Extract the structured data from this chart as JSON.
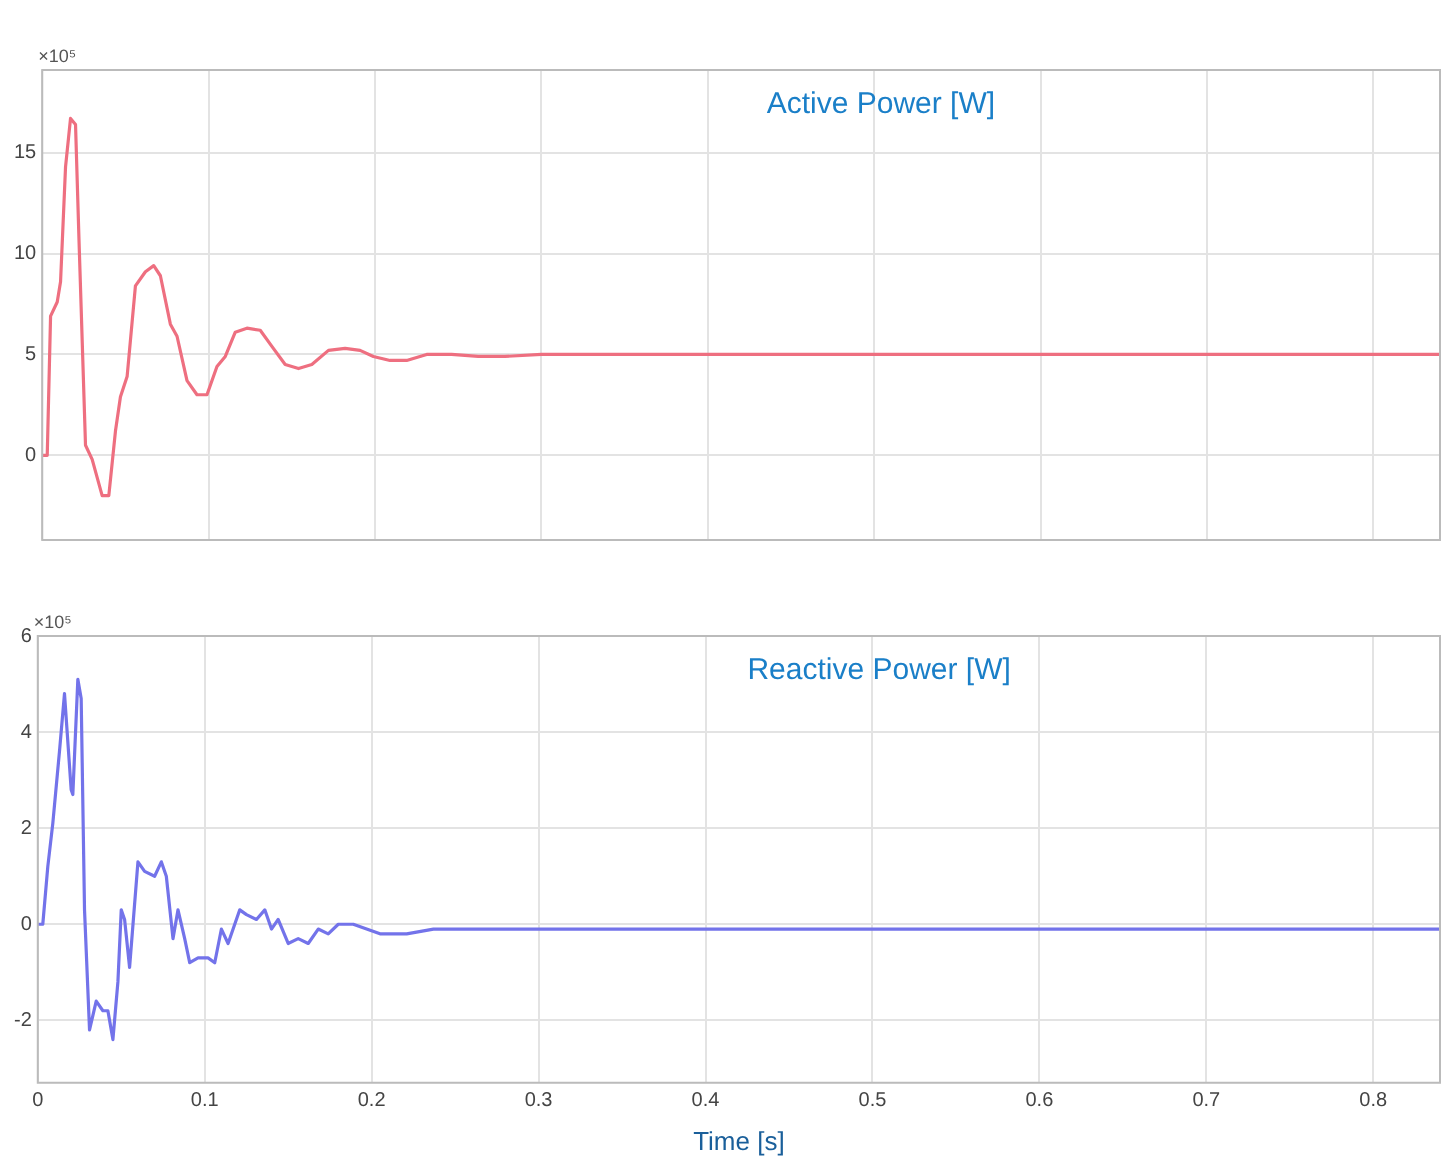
{
  "chart_data": [
    {
      "type": "line",
      "title": "Active Power [W]",
      "annotations": [
        "×10⁵"
      ],
      "x": [
        0,
        0.003,
        0.005,
        0.009,
        0.011,
        0.014,
        0.017,
        0.02,
        0.022,
        0.026,
        0.03,
        0.036,
        0.04,
        0.044,
        0.047,
        0.051,
        0.056,
        0.062,
        0.067,
        0.071,
        0.077,
        0.081,
        0.087,
        0.093,
        0.099,
        0.105,
        0.11,
        0.116,
        0.123,
        0.131,
        0.138,
        0.146,
        0.154,
        0.162,
        0.172,
        0.182,
        0.191,
        0.199,
        0.209,
        0.219,
        0.231,
        0.246,
        0.262,
        0.278,
        0.3,
        0.4,
        0.5,
        0.6,
        0.7,
        0.84
      ],
      "series": [
        {
          "color": "#ee6f80",
          "values": [
            0,
            0,
            6.9,
            7.6,
            8.6,
            14.3,
            16.7,
            16.4,
            10.9,
            0.5,
            -0.2,
            -2.0,
            -2.0,
            1.2,
            2.9,
            3.9,
            8.4,
            9.1,
            9.4,
            8.9,
            6.5,
            5.9,
            3.7,
            3.0,
            3.0,
            4.4,
            4.9,
            6.1,
            6.3,
            6.2,
            5.4,
            4.5,
            4.3,
            4.5,
            5.2,
            5.3,
            5.2,
            4.9,
            4.7,
            4.7,
            5.0,
            5.0,
            4.9,
            4.9,
            5.0,
            5.0,
            5.0,
            5.0,
            5.0,
            5.0
          ]
        }
      ],
      "xlim": [
        0,
        0.84
      ],
      "xticks": [
        0,
        0.1,
        0.2,
        0.3,
        0.4,
        0.5,
        0.6,
        0.7,
        0.8
      ],
      "ylim": [
        -4.2,
        19.1
      ],
      "yticks": [
        0,
        5,
        10,
        15
      ],
      "grid": true,
      "tick_labels": "y"
    },
    {
      "type": "line",
      "title": "Reactive Power [W]",
      "xlabel": "Time [s]",
      "annotations": [
        "×10⁵"
      ],
      "x": [
        0,
        0.003,
        0.006,
        0.009,
        0.013,
        0.016,
        0.02,
        0.021,
        0.024,
        0.026,
        0.028,
        0.031,
        0.035,
        0.039,
        0.042,
        0.045,
        0.048,
        0.05,
        0.052,
        0.055,
        0.06,
        0.064,
        0.07,
        0.074,
        0.077,
        0.081,
        0.084,
        0.088,
        0.091,
        0.096,
        0.102,
        0.106,
        0.11,
        0.114,
        0.121,
        0.125,
        0.131,
        0.136,
        0.14,
        0.144,
        0.15,
        0.156,
        0.162,
        0.168,
        0.174,
        0.18,
        0.189,
        0.197,
        0.205,
        0.221,
        0.237,
        0.254,
        0.278,
        0.4,
        0.6,
        0.84
      ],
      "series": [
        {
          "color": "#7373ea",
          "values": [
            0,
            0,
            1.2,
            2.1,
            3.6,
            4.8,
            2.8,
            2.7,
            5.1,
            4.7,
            0.3,
            -2.2,
            -1.6,
            -1.8,
            -1.8,
            -2.4,
            -1.2,
            0.3,
            0.1,
            -0.9,
            1.3,
            1.1,
            1.0,
            1.3,
            1.0,
            -0.3,
            0.3,
            -0.3,
            -0.8,
            -0.7,
            -0.7,
            -0.8,
            -0.1,
            -0.4,
            0.3,
            0.2,
            0.1,
            0.3,
            -0.1,
            0.1,
            -0.4,
            -0.3,
            -0.4,
            -0.1,
            -0.2,
            0,
            0,
            -0.1,
            -0.2,
            -0.2,
            -0.1,
            -0.1,
            -0.1,
            -0.1,
            -0.1,
            -0.1
          ]
        }
      ],
      "xlim": [
        0,
        0.84
      ],
      "xticks": [
        0,
        0.1,
        0.2,
        0.3,
        0.4,
        0.5,
        0.6,
        0.7,
        0.8
      ],
      "ylim": [
        -3.3,
        6
      ],
      "yticks": [
        -2,
        0,
        2,
        4,
        6
      ],
      "grid": true
    }
  ]
}
